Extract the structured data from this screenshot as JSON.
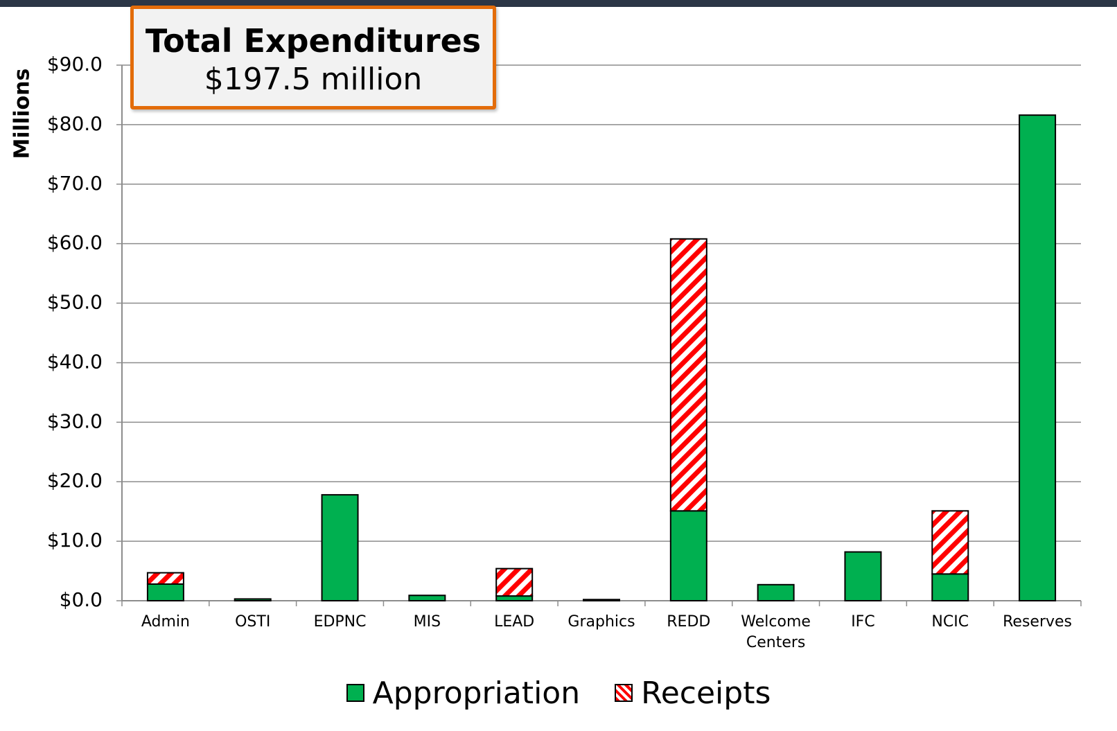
{
  "chart_data": {
    "type": "stacked_bar",
    "title": "Total Expenditures",
    "subtitle": "$197.5 million",
    "y_label": "Millions",
    "categories": [
      "Admin",
      "OSTI",
      "EDPNC",
      "MIS",
      "LEAD",
      "Graphics",
      "REDD",
      "Welcome Centers",
      "IFC",
      "NCIC",
      "Reserves"
    ],
    "series": [
      {
        "name": "Appropriation",
        "color": "#00b050",
        "pattern": "solid",
        "values": [
          2.8,
          0.3,
          17.8,
          0.9,
          0.8,
          0.2,
          15.1,
          2.7,
          8.2,
          4.5,
          81.6
        ]
      },
      {
        "name": "Receipts",
        "color": "#ff0000",
        "pattern": "hatch",
        "values": [
          1.9,
          0,
          0,
          0,
          4.6,
          0,
          45.7,
          0,
          0,
          10.6,
          0
        ]
      }
    ],
    "ylim": [
      0,
      90
    ],
    "yticks": [
      {
        "value": 0,
        "label": "$0.0"
      },
      {
        "value": 10,
        "label": "$10.0"
      },
      {
        "value": 20,
        "label": "$20.0"
      },
      {
        "value": 30,
        "label": "$30.0"
      },
      {
        "value": 40,
        "label": "$40.0"
      },
      {
        "value": 50,
        "label": "$50.0"
      },
      {
        "value": 60,
        "label": "$60.0"
      },
      {
        "value": 70,
        "label": "$70.0"
      },
      {
        "value": 80,
        "label": "$80.0"
      },
      {
        "value": 90,
        "label": "$90.0"
      }
    ],
    "grid": true
  }
}
